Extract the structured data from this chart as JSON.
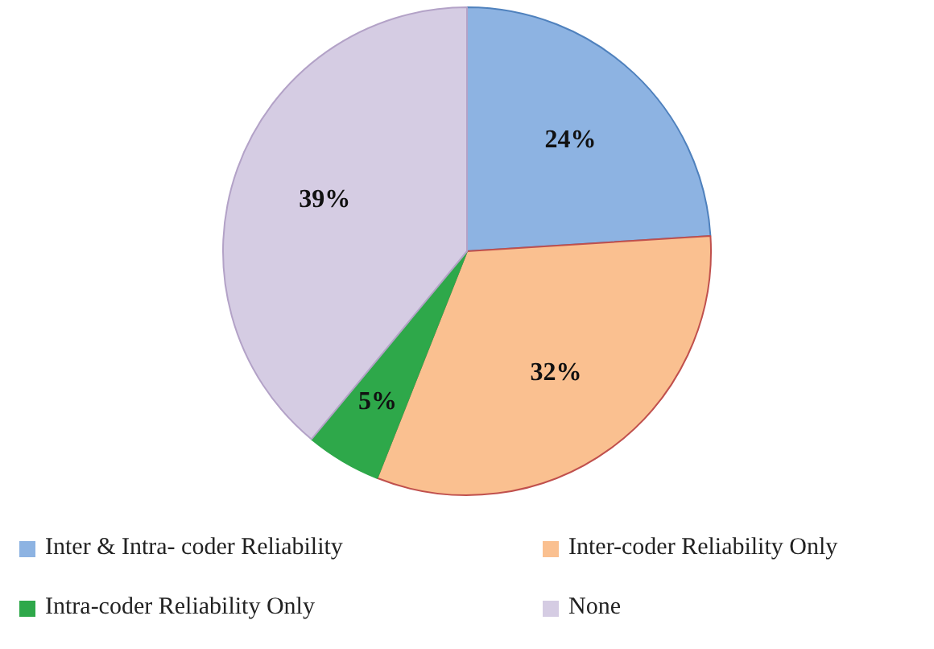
{
  "chart_data": {
    "type": "pie",
    "categories": [
      "Inter & Intra- coder Reliability",
      "Inter-coder Reliability Only",
      "Intra-coder Reliability Only",
      "None"
    ],
    "values": [
      24,
      32,
      5,
      39
    ],
    "colors": [
      "#8db3e2",
      "#fac090",
      "#2ea84a",
      "#d5cce3"
    ],
    "value_labels": [
      "24%",
      "32%",
      "5%",
      "39%"
    ],
    "legend": "bottom"
  }
}
